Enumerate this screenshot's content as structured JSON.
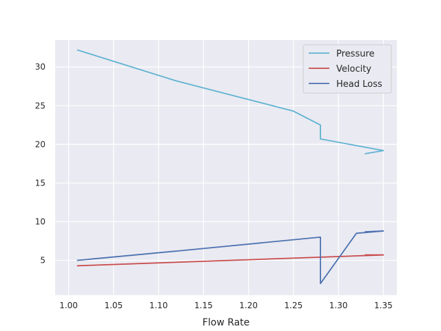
{
  "chart_data": {
    "type": "line",
    "title": "",
    "xlabel": "Flow Rate",
    "ylabel": "",
    "xlim": [
      0.985,
      1.365
    ],
    "ylim": [
      0.5,
      33.5
    ],
    "xticks": [
      1.0,
      1.05,
      1.1,
      1.15,
      1.2,
      1.25,
      1.3,
      1.35
    ],
    "xtick_labels": [
      "1.00",
      "1.05",
      "1.10",
      "1.15",
      "1.20",
      "1.25",
      "1.30",
      "1.35"
    ],
    "yticks": [
      5,
      10,
      15,
      20,
      25,
      30
    ],
    "ytick_labels": [
      "5",
      "10",
      "15",
      "20",
      "25",
      "30"
    ],
    "grid": true,
    "legend_position": "top-right",
    "series": [
      {
        "name": "Pressure",
        "color": "#5fb3d1",
        "x": [
          1.01,
          1.12,
          1.25,
          1.28,
          1.28,
          1.35,
          1.33
        ],
        "y": [
          32.2,
          28.2,
          24.3,
          22.5,
          20.7,
          19.2,
          18.8
        ]
      },
      {
        "name": "Velocity",
        "color": "#c94a4a",
        "x": [
          1.01,
          1.35,
          1.33
        ],
        "y": [
          4.3,
          5.7,
          5.7
        ]
      },
      {
        "name": "Head Loss",
        "color": "#4c72b0",
        "x": [
          1.01,
          1.12,
          1.28,
          1.28,
          1.32,
          1.35,
          1.33
        ],
        "y": [
          5.0,
          6.2,
          8.0,
          2.0,
          8.5,
          8.8,
          8.7
        ]
      }
    ]
  }
}
